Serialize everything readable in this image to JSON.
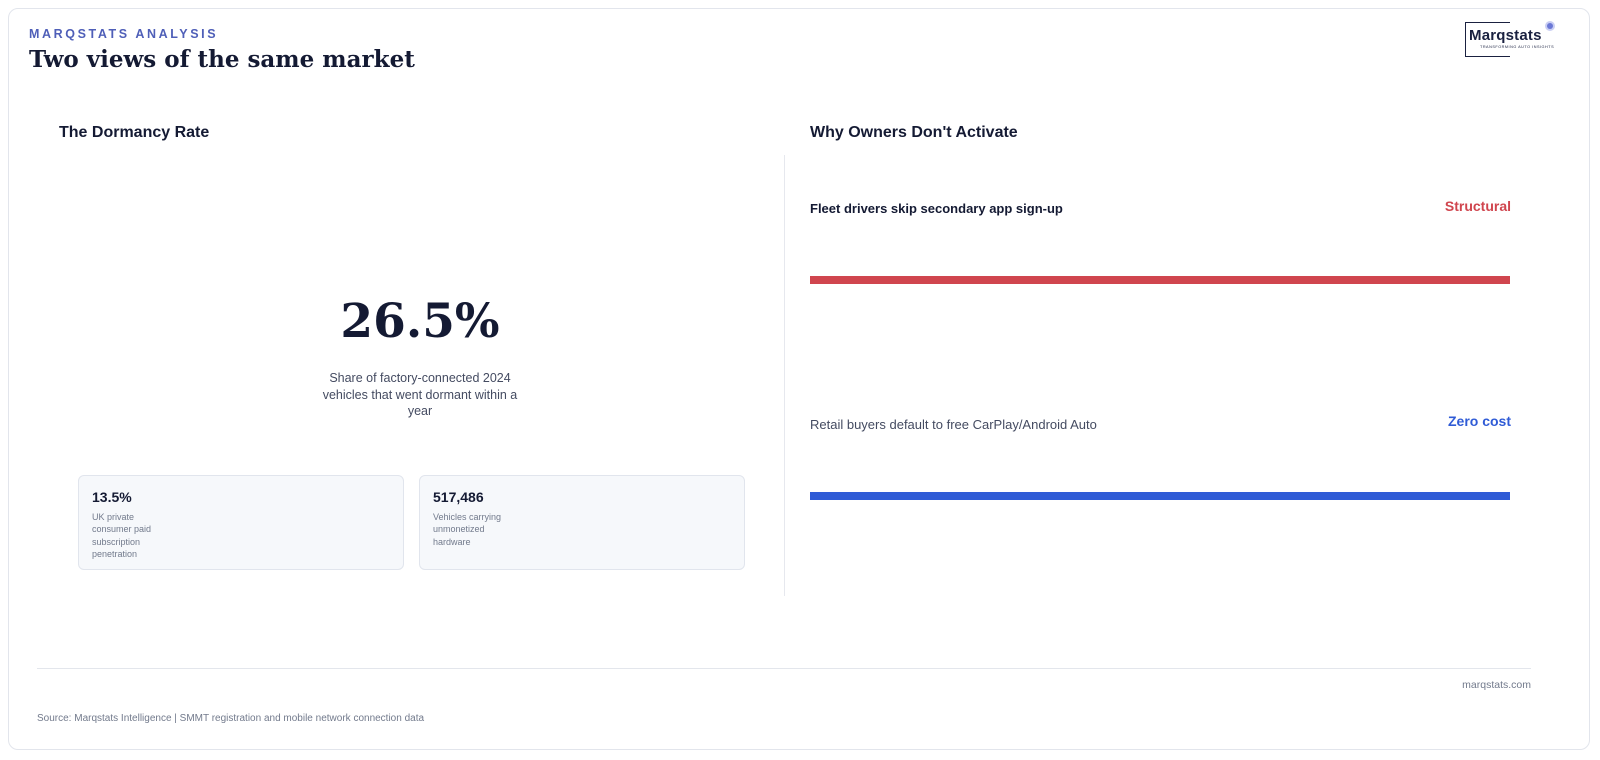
{
  "header": {
    "eyebrow": "MARQSTATS ANALYSIS",
    "title": "Two views of the same market"
  },
  "logo": {
    "wordmark": "Marqstats",
    "tagline": "TRANSFORMING AUTO INSIGHTS"
  },
  "left_panel": {
    "title": "The Dormancy Rate",
    "big_number": "26.5%",
    "big_description": "Share of factory-connected 2024 vehicles that went dormant within a year",
    "stats": [
      {
        "value": "13.5%",
        "label": "UK private consumer paid subscription penetration"
      },
      {
        "value": "517,486",
        "label": "Vehicles carrying unmonetized hardware"
      }
    ]
  },
  "right_panel": {
    "title": "Why Owners Don't Activate",
    "reasons": [
      {
        "label": "Fleet drivers skip secondary app sign-up",
        "tag": "Structural",
        "color": "#d0454e",
        "bar_fill": 1.0
      },
      {
        "label": "Retail buyers default to free CarPlay/Android Auto",
        "tag": "Zero cost",
        "color": "#2f5bd6",
        "bar_fill": 1.0
      }
    ]
  },
  "footer": {
    "site": "marqstats.com",
    "source": "Source: Marqstats Intelligence | SMMT registration and mobile network connection data"
  }
}
